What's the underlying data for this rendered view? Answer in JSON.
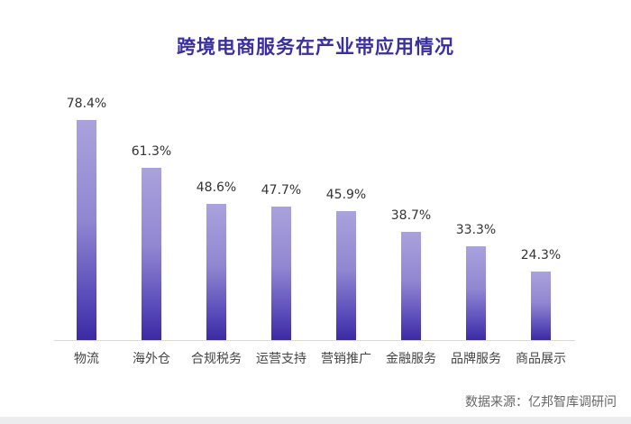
{
  "title": "跨境电商服务在产业带应用情况",
  "source": "数据来源：亿邦智库调研问",
  "colors": {
    "title": "#3a2fa0",
    "bar_top": "#aaa2dc",
    "bar_bottom": "#3b2aa3"
  },
  "chart_data": {
    "type": "bar",
    "title": "跨境电商服务在产业带应用情况",
    "xlabel": "",
    "ylabel": "",
    "categories": [
      "物流",
      "海外仓",
      "合规税务",
      "运营支持",
      "营销推广",
      "金融服务",
      "品牌服务",
      "商品展示"
    ],
    "values": [
      78.4,
      61.3,
      48.6,
      47.7,
      45.9,
      38.7,
      33.3,
      24.3
    ],
    "value_labels": [
      "78.4%",
      "61.3%",
      "48.6%",
      "47.7%",
      "45.9%",
      "38.7%",
      "33.3%",
      "24.3%"
    ],
    "unit": "%",
    "ylim": [
      0,
      80
    ],
    "grid": false,
    "legend": null
  }
}
